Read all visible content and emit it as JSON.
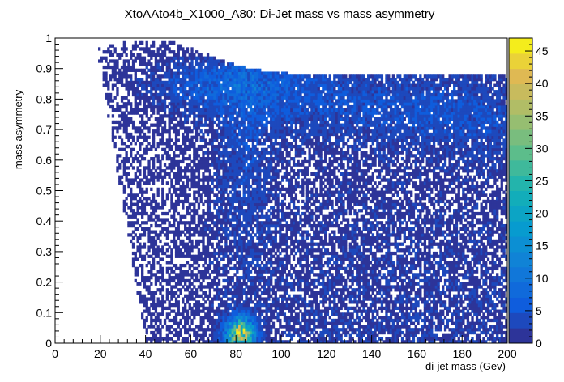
{
  "chart_data": {
    "type": "heatmap",
    "title": "XtoAAto4b_X1000_A80: Di-Jet mass vs mass asymmetry",
    "xlabel": "di-jet mass (Gev)",
    "ylabel": "mass asymmetry",
    "xlim": [
      0,
      200
    ],
    "ylim": [
      0,
      1
    ],
    "x_ticks": [
      "0",
      "20",
      "40",
      "60",
      "80",
      "100",
      "120",
      "140",
      "160",
      "180",
      "200"
    ],
    "y_ticks": [
      "0",
      "0.1",
      "0.2",
      "0.3",
      "0.4",
      "0.5",
      "0.6",
      "0.7",
      "0.8",
      "0.9",
      "1"
    ],
    "z_range": [
      0,
      47
    ],
    "z_ticks": [
      "0",
      "5",
      "10",
      "15",
      "20",
      "25",
      "30",
      "35",
      "40",
      "45"
    ],
    "colormap": "parula",
    "bins": {
      "x": 200,
      "y": 100
    },
    "features": [
      {
        "x": 82,
        "y": 0.03,
        "value": 47
      },
      {
        "x": 78,
        "y": 0.84,
        "value": 22
      },
      {
        "x": 84,
        "y": 0.82,
        "value": 20
      },
      {
        "x": 70,
        "y": 0.86,
        "value": 16
      },
      {
        "x": 85,
        "y": 0.7,
        "value": 12
      },
      {
        "x": 140,
        "y": 0.75,
        "value": 7
      },
      {
        "x": 160,
        "y": 0.45,
        "value": 4
      }
    ]
  }
}
